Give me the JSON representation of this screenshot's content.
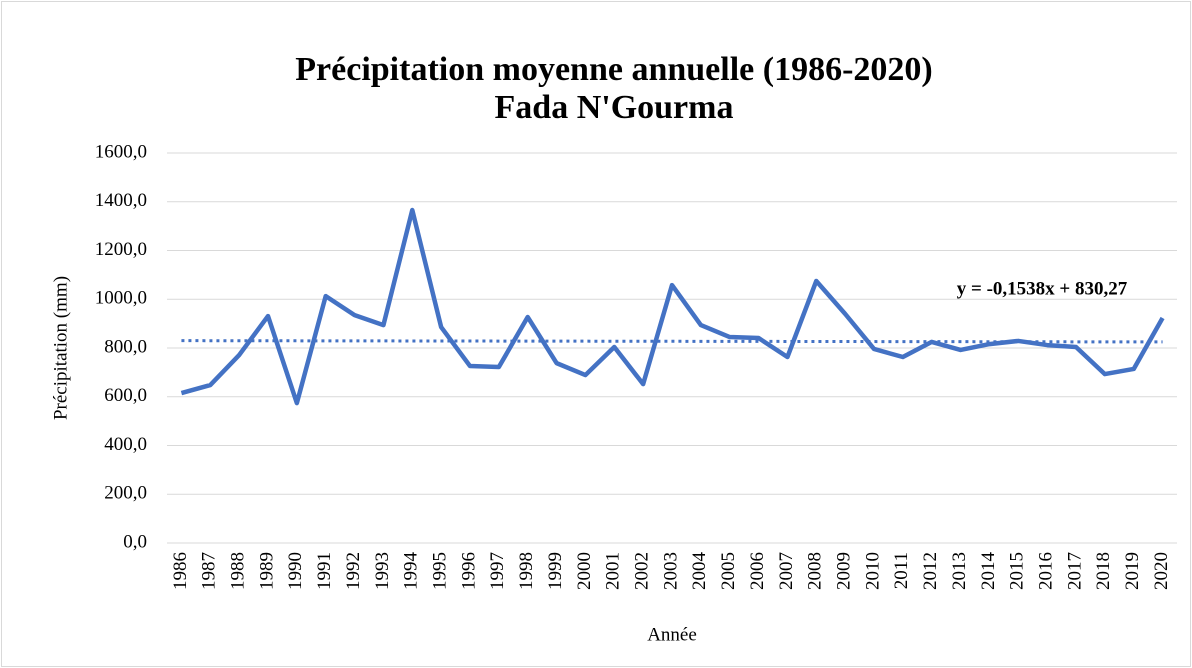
{
  "chart_data": {
    "type": "line",
    "title": "Précipitation moyenne annuelle (1986-2020)",
    "subtitle": "Fada N'Gourma",
    "x_label": "Année",
    "y_label": "Précipitation (mm)",
    "annotation": "y = -0,1538x + 830,27",
    "categories": [
      "1986",
      "1987",
      "1988",
      "1989",
      "1990",
      "1991",
      "1992",
      "1993",
      "1994",
      "1995",
      "1996",
      "1997",
      "1998",
      "1999",
      "2000",
      "2001",
      "2002",
      "2003",
      "2004",
      "2005",
      "2006",
      "2007",
      "2008",
      "2009",
      "2010",
      "2011",
      "2012",
      "2013",
      "2014",
      "2015",
      "2016",
      "2017",
      "2018",
      "2019",
      "2020"
    ],
    "series": [
      {
        "name": "Précipitation",
        "color": "#4472c4",
        "values": [
          615,
          648,
          771,
          931,
          574,
          1013,
          935,
          894,
          1366,
          886,
          726,
          722,
          927,
          738,
          689,
          804,
          652,
          1058,
          894,
          845,
          841,
          763,
          1075,
          940,
          796,
          763,
          825,
          792,
          816,
          829,
          812,
          804,
          693,
          714,
          923
        ]
      }
    ],
    "trendline": {
      "color": "#4472c4",
      "start": 830.12,
      "end": 824.89
    },
    "ylim": [
      0,
      1600
    ],
    "yticks": [
      {
        "value": 0,
        "label": "0,0"
      },
      {
        "value": 200,
        "label": "200,0"
      },
      {
        "value": 400,
        "label": "400,0"
      },
      {
        "value": 600,
        "label": "600,0"
      },
      {
        "value": 800,
        "label": "800,0"
      },
      {
        "value": 1000,
        "label": "1000,0"
      },
      {
        "value": 1200,
        "label": "1200,0"
      },
      {
        "value": 1400,
        "label": "1400,0"
      },
      {
        "value": 1600,
        "label": "1600,0"
      }
    ],
    "grid": true
  }
}
